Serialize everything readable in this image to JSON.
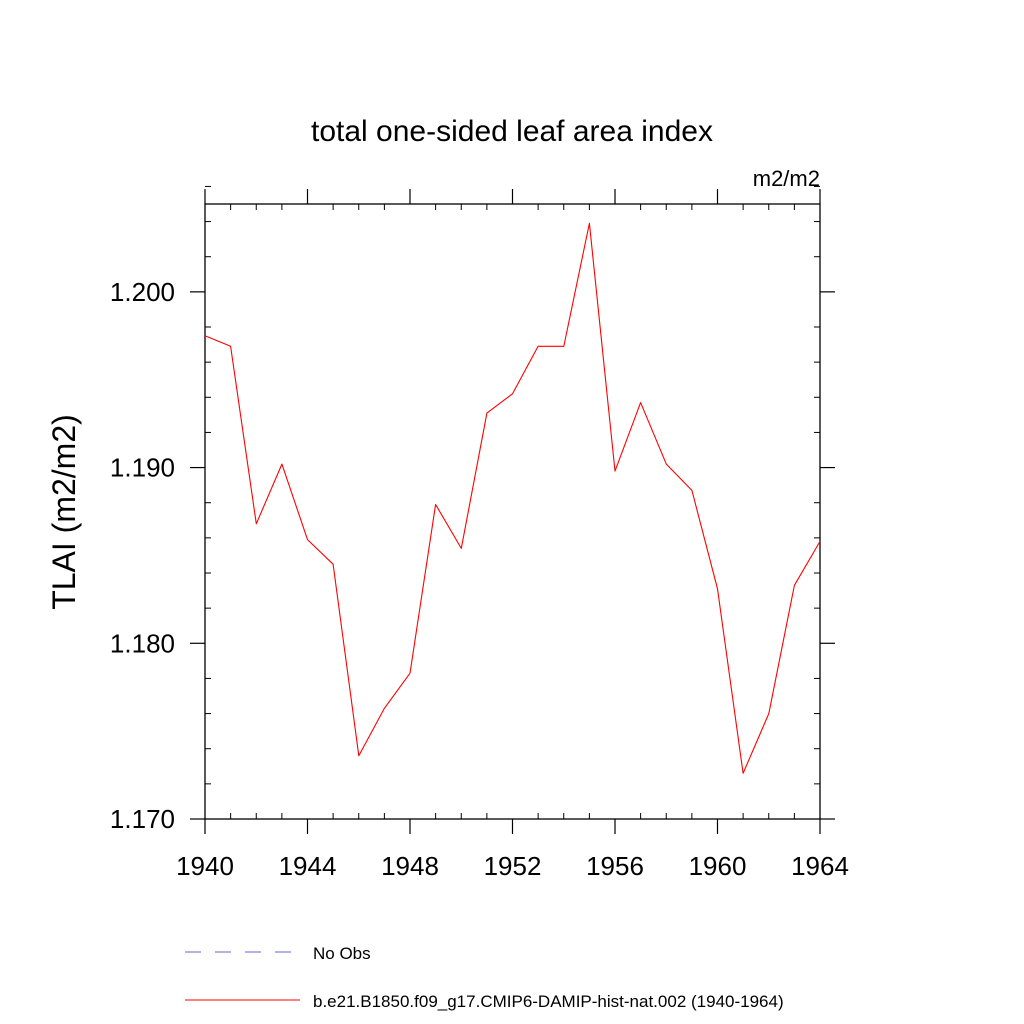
{
  "chart_data": {
    "type": "line",
    "title": "total one-sided leaf area index",
    "units_label": "m2/m2",
    "ylabel": "TLAI  (m2/m2)",
    "xlabel": "",
    "xlim": [
      1940,
      1964
    ],
    "ylim": [
      1.17,
      1.205
    ],
    "x_ticks": [
      1940,
      1944,
      1948,
      1952,
      1956,
      1960,
      1964
    ],
    "y_ticks": [
      "1.170",
      "1.180",
      "1.190",
      "1.200"
    ],
    "x": [
      1940,
      1941,
      1942,
      1943,
      1944,
      1945,
      1946,
      1947,
      1948,
      1949,
      1950,
      1951,
      1952,
      1953,
      1954,
      1955,
      1956,
      1957,
      1958,
      1959,
      1960,
      1961,
      1962,
      1963,
      1964
    ],
    "series": [
      {
        "name": "b.e21.B1850.f09_g17.CMIP6-DAMIP-hist-nat.002 (1940-1964)",
        "color": "#ff0000",
        "style": "solid",
        "values": [
          1.1975,
          1.1969,
          1.1868,
          1.1902,
          1.1859,
          1.1845,
          1.1736,
          1.1763,
          1.1783,
          1.1879,
          1.1854,
          1.1931,
          1.1942,
          1.1969,
          1.1969,
          1.2039,
          1.1898,
          1.1937,
          1.1902,
          1.1887,
          1.1831,
          1.1726,
          1.176,
          1.1833,
          1.1858
        ]
      }
    ],
    "legend": {
      "placement": "bottom",
      "entries": [
        {
          "label": "No Obs",
          "color": "#6666cc",
          "style": "dashed"
        },
        {
          "label": "b.e21.B1850.f09_g17.CMIP6-DAMIP-hist-nat.002 (1940-1964)",
          "color": "#ff0000",
          "style": "solid"
        }
      ]
    },
    "grid": false
  }
}
